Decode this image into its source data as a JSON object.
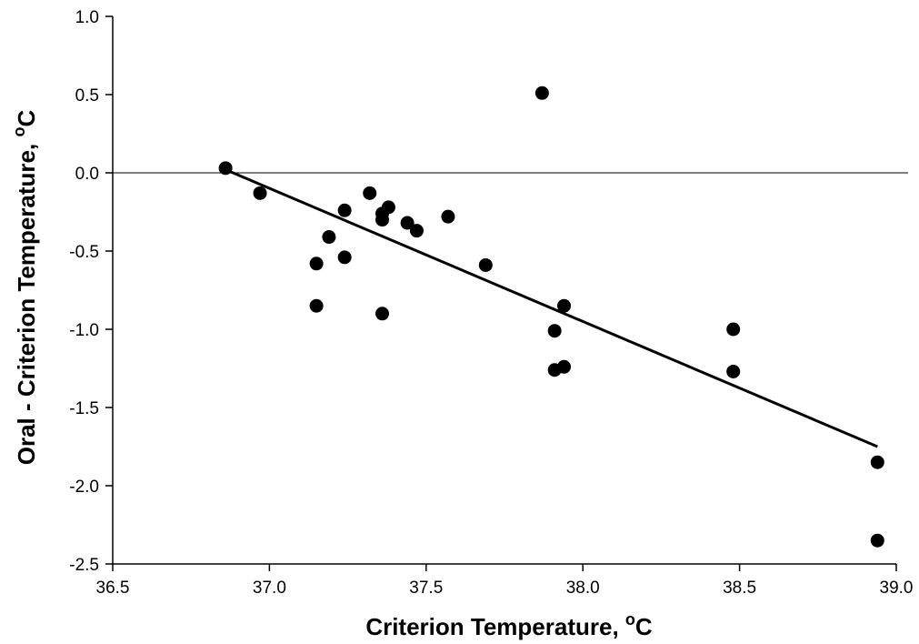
{
  "chart_data": {
    "type": "scatter",
    "title": "",
    "xlabel": "Criterion Temperature, ",
    "xlabel_unit": "C",
    "ylabel": "Oral - Criterion Temperature, ",
    "ylabel_unit": "C",
    "degree_symbol": "o",
    "xlim": [
      36.5,
      39.0
    ],
    "ylim": [
      -2.5,
      1.0
    ],
    "x_ticks": [
      36.5,
      37.0,
      37.5,
      38.0,
      38.5,
      39.0
    ],
    "x_tick_labels": [
      "36.5",
      "37.0",
      "37.5",
      "38.0",
      "38.5",
      "39.0"
    ],
    "y_ticks": [
      1.0,
      0.5,
      0.0,
      -0.5,
      -1.0,
      -1.5,
      -2.0,
      -2.5
    ],
    "y_tick_labels": [
      "1.0",
      "0.5",
      "0.0",
      "-0.5",
      "-1.0",
      "-1.5",
      "-2.0",
      "-2.5"
    ],
    "grid": false,
    "legend": "none",
    "reference_line_y": 0.0,
    "marker_color": "#000000",
    "points": [
      {
        "x": 36.86,
        "y": 0.03
      },
      {
        "x": 36.97,
        "y": -0.13
      },
      {
        "x": 37.15,
        "y": -0.58
      },
      {
        "x": 37.15,
        "y": -0.85
      },
      {
        "x": 37.19,
        "y": -0.41
      },
      {
        "x": 37.24,
        "y": -0.24
      },
      {
        "x": 37.24,
        "y": -0.54
      },
      {
        "x": 37.32,
        "y": -0.13
      },
      {
        "x": 37.36,
        "y": -0.26
      },
      {
        "x": 37.36,
        "y": -0.3
      },
      {
        "x": 37.36,
        "y": -0.9
      },
      {
        "x": 37.38,
        "y": -0.22
      },
      {
        "x": 37.44,
        "y": -0.32
      },
      {
        "x": 37.47,
        "y": -0.37
      },
      {
        "x": 37.57,
        "y": -0.28
      },
      {
        "x": 37.69,
        "y": -0.59
      },
      {
        "x": 37.87,
        "y": 0.51
      },
      {
        "x": 37.91,
        "y": -1.01
      },
      {
        "x": 37.91,
        "y": -1.26
      },
      {
        "x": 37.94,
        "y": -0.85
      },
      {
        "x": 37.94,
        "y": -1.24
      },
      {
        "x": 38.48,
        "y": -1.0
      },
      {
        "x": 38.48,
        "y": -1.27
      },
      {
        "x": 38.94,
        "y": -1.85
      },
      {
        "x": 38.94,
        "y": -2.35
      }
    ],
    "fit_line": {
      "x": [
        36.86,
        38.94
      ],
      "y": [
        0.02,
        -1.75
      ]
    }
  }
}
